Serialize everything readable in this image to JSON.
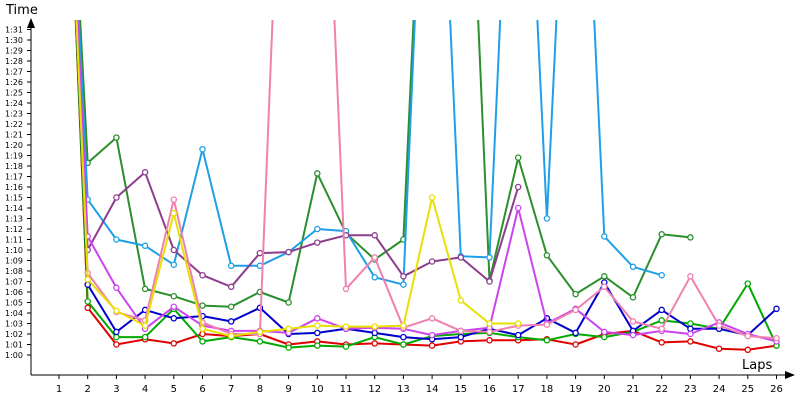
{
  "chart_data": {
    "type": "line",
    "ylabel": "Time",
    "xlabel": "Laps",
    "x": [
      1,
      2,
      3,
      4,
      5,
      6,
      7,
      8,
      9,
      10,
      11,
      12,
      13,
      14,
      15,
      16,
      17,
      18,
      19,
      20,
      21,
      22,
      23,
      24,
      25,
      26
    ],
    "y_ticks": [
      "1:00",
      "1:01",
      "1:02",
      "1:03",
      "1:04",
      "1:05",
      "1:06",
      "1:07",
      "1:08",
      "1:09",
      "1:10",
      "1:11",
      "1:12",
      "1:13",
      "1:14",
      "1:15",
      "1:16",
      "1:17",
      "1:18",
      "1:19",
      "1:20",
      "1:21",
      "1:22",
      "1:23",
      "1:24",
      "1:25",
      "1:26",
      "1:27",
      "1:28",
      "1:29",
      "1:30",
      "1:31"
    ],
    "ylim_seconds": [
      60,
      96
    ],
    "grid": false,
    "series": [
      {
        "color": "#e00000",
        "points": [
          [
            1,
            null
          ],
          [
            2,
            64.5
          ],
          [
            3,
            61
          ],
          [
            4,
            61.5
          ],
          [
            5,
            61.1
          ],
          [
            6,
            62
          ],
          [
            7,
            61.8
          ],
          [
            8,
            62
          ],
          [
            9,
            61
          ],
          [
            10,
            61.3
          ],
          [
            11,
            61
          ],
          [
            12,
            61.1
          ],
          [
            13,
            61
          ],
          [
            14,
            60.9
          ],
          [
            15,
            61.3
          ],
          [
            16,
            61.4
          ],
          [
            17,
            61.4
          ],
          [
            18,
            61.5
          ],
          [
            19,
            61
          ],
          [
            20,
            62
          ],
          [
            21,
            62.3
          ],
          [
            22,
            61.2
          ],
          [
            23,
            61.3
          ],
          [
            24,
            60.6
          ],
          [
            25,
            60.5
          ],
          [
            26,
            60.9
          ]
        ]
      },
      {
        "color": "#00aa00",
        "points": [
          [
            1,
            null
          ],
          [
            2,
            65.1
          ],
          [
            3,
            61.7
          ],
          [
            4,
            61.7
          ],
          [
            5,
            64.4
          ],
          [
            6,
            61.3
          ],
          [
            7,
            61.7
          ],
          [
            8,
            61.3
          ],
          [
            9,
            60.7
          ],
          [
            10,
            60.9
          ],
          [
            11,
            60.8
          ],
          [
            12,
            61.7
          ],
          [
            13,
            61
          ],
          [
            14,
            61.8
          ],
          [
            15,
            62
          ],
          [
            16,
            62.1
          ],
          [
            17,
            61.7
          ],
          [
            18,
            61.4
          ],
          [
            19,
            62
          ],
          [
            20,
            61.7
          ],
          [
            21,
            62.2
          ],
          [
            22,
            63.3
          ],
          [
            23,
            63
          ],
          [
            24,
            62.5
          ],
          [
            25,
            66.8
          ],
          [
            26,
            60.9
          ]
        ]
      },
      {
        "color": "#0000cc",
        "points": [
          [
            1,
            null
          ],
          [
            2,
            66.7
          ],
          [
            3,
            62.2
          ],
          [
            4,
            64.3
          ],
          [
            5,
            63.5
          ],
          [
            6,
            63.7
          ],
          [
            7,
            63.2
          ],
          [
            8,
            64.5
          ],
          [
            9,
            62
          ],
          [
            10,
            62.1
          ],
          [
            11,
            62.5
          ],
          [
            12,
            62.1
          ],
          [
            13,
            61.7
          ],
          [
            14,
            61.5
          ],
          [
            15,
            61.7
          ],
          [
            16,
            62.5
          ],
          [
            17,
            61.9
          ],
          [
            18,
            63.5
          ],
          [
            19,
            62.1
          ],
          [
            20,
            66.9
          ],
          [
            21,
            62.3
          ],
          [
            22,
            64.3
          ],
          [
            23,
            62.5
          ],
          [
            24,
            62.5
          ],
          [
            25,
            61.9
          ],
          [
            26,
            64.4
          ]
        ]
      },
      {
        "color": "#2b8f2b",
        "points": [
          [
            1,
            null
          ],
          [
            2,
            78.3
          ],
          [
            3,
            80.7
          ],
          [
            4,
            66.3
          ],
          [
            5,
            65.6
          ],
          [
            6,
            64.7
          ],
          [
            7,
            64.6
          ],
          [
            8,
            66
          ],
          [
            9,
            65
          ],
          [
            10,
            77.3
          ],
          [
            11,
            71.6
          ],
          [
            12,
            69.1
          ],
          [
            13,
            71
          ],
          [
            14,
            null
          ],
          [
            15,
            null
          ],
          [
            16,
            67.1
          ],
          [
            17,
            78.8
          ],
          [
            18,
            69.5
          ],
          [
            19,
            65.8
          ],
          [
            20,
            67.5
          ],
          [
            21,
            65.5
          ],
          [
            22,
            71.5
          ],
          [
            23,
            71.2
          ],
          [
            24,
            null
          ],
          [
            25,
            null
          ],
          [
            26,
            null
          ]
        ]
      },
      {
        "color": "#1f9fe8",
        "points": [
          [
            1,
            null
          ],
          [
            2,
            74.8
          ],
          [
            3,
            71
          ],
          [
            4,
            70.4
          ],
          [
            5,
            68.6
          ],
          [
            6,
            79.6
          ],
          [
            7,
            68.5
          ],
          [
            8,
            68.5
          ],
          [
            9,
            69.8
          ],
          [
            10,
            72
          ],
          [
            11,
            71.8
          ],
          [
            12,
            67.4
          ],
          [
            13,
            66.7
          ],
          [
            14,
            null
          ],
          [
            15,
            69.4
          ],
          [
            16,
            69.3
          ],
          [
            17,
            null
          ],
          [
            18,
            73
          ],
          [
            19,
            null
          ],
          [
            20,
            71.3
          ],
          [
            21,
            68.4
          ],
          [
            22,
            67.6
          ],
          [
            23,
            null
          ],
          [
            24,
            null
          ],
          [
            25,
            null
          ],
          [
            26,
            null
          ]
        ]
      },
      {
        "color": "#8e3d8e",
        "points": [
          [
            1,
            null
          ],
          [
            2,
            70
          ],
          [
            3,
            75
          ],
          [
            4,
            77.4
          ],
          [
            5,
            70
          ],
          [
            6,
            67.6
          ],
          [
            7,
            66.5
          ],
          [
            8,
            69.7
          ],
          [
            9,
            69.8
          ],
          [
            10,
            70.7
          ],
          [
            11,
            71.4
          ],
          [
            12,
            71.4
          ],
          [
            13,
            67.5
          ],
          [
            14,
            68.9
          ],
          [
            15,
            69.3
          ],
          [
            16,
            67
          ],
          [
            17,
            76
          ],
          [
            18,
            null
          ],
          [
            19,
            null
          ],
          [
            20,
            null
          ],
          [
            21,
            null
          ],
          [
            22,
            null
          ],
          [
            23,
            null
          ],
          [
            24,
            null
          ],
          [
            25,
            null
          ],
          [
            26,
            null
          ]
        ]
      },
      {
        "color": "#cc44ee",
        "points": [
          [
            1,
            null
          ],
          [
            2,
            71.3
          ],
          [
            3,
            66.4
          ],
          [
            4,
            62.5
          ],
          [
            5,
            64.6
          ],
          [
            6,
            62.8
          ],
          [
            7,
            62.3
          ],
          [
            8,
            62.3
          ],
          [
            9,
            62.1
          ],
          [
            10,
            63.5
          ],
          [
            11,
            62.5
          ],
          [
            12,
            62.6
          ],
          [
            13,
            62.5
          ],
          [
            14,
            61.9
          ],
          [
            15,
            62.3
          ],
          [
            16,
            62.6
          ],
          [
            17,
            74
          ],
          [
            18,
            63
          ],
          [
            19,
            64.4
          ],
          [
            20,
            62.2
          ],
          [
            21,
            61.9
          ],
          [
            22,
            62.3
          ],
          [
            23,
            62
          ],
          [
            24,
            63.1
          ],
          [
            25,
            62
          ],
          [
            26,
            61.3
          ]
        ]
      },
      {
        "color": "#f080b0",
        "points": [
          [
            1,
            null
          ],
          [
            2,
            67.8
          ],
          [
            3,
            64.1
          ],
          [
            4,
            63.3
          ],
          [
            5,
            74.8
          ],
          [
            6,
            63.1
          ],
          [
            7,
            62
          ],
          [
            8,
            62
          ],
          [
            9,
            null
          ],
          [
            10,
            null
          ],
          [
            11,
            66.3
          ],
          [
            12,
            69.3
          ],
          [
            13,
            62.6
          ],
          [
            14,
            63.5
          ],
          [
            15,
            62.3
          ],
          [
            16,
            62.2
          ],
          [
            17,
            62.8
          ],
          [
            18,
            62.9
          ],
          [
            19,
            64.3
          ],
          [
            20,
            66.5
          ],
          [
            21,
            63.2
          ],
          [
            22,
            62.5
          ],
          [
            23,
            67.5
          ],
          [
            24,
            62.8
          ],
          [
            25,
            61.8
          ],
          [
            26,
            61.6
          ]
        ]
      },
      {
        "color": "#e8e000",
        "points": [
          [
            1,
            null
          ],
          [
            2,
            67.2
          ],
          [
            3,
            64.2
          ],
          [
            4,
            62.8
          ],
          [
            5,
            73.5
          ],
          [
            6,
            62.5
          ],
          [
            7,
            61.8
          ],
          [
            8,
            62.2
          ],
          [
            9,
            62.5
          ],
          [
            10,
            62.8
          ],
          [
            11,
            62.7
          ],
          [
            12,
            62.7
          ],
          [
            13,
            62.8
          ],
          [
            14,
            75
          ],
          [
            15,
            65.2
          ],
          [
            16,
            63
          ],
          [
            17,
            63
          ],
          [
            18,
            null
          ],
          [
            19,
            null
          ],
          [
            20,
            null
          ],
          [
            21,
            null
          ],
          [
            22,
            null
          ],
          [
            23,
            null
          ],
          [
            24,
            null
          ],
          [
            25,
            null
          ],
          [
            26,
            null
          ]
        ]
      }
    ]
  }
}
